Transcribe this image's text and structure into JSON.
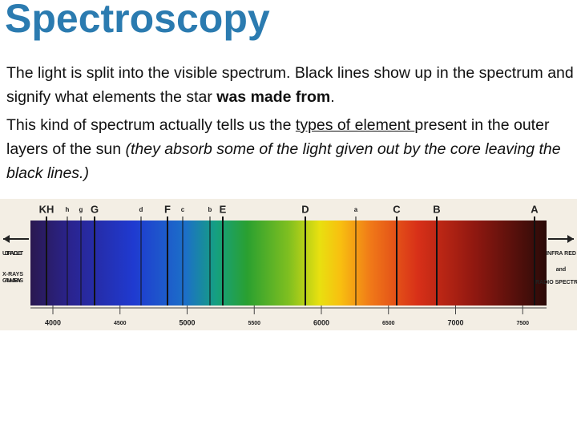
{
  "title": "Spectroscopy",
  "paragraphs": [
    {
      "runs": [
        {
          "text": "The light is split into the visible spectrum. Black lines show up in the spectrum and signify what elements the star "
        },
        {
          "text": "was made from",
          "bold": true
        },
        {
          "text": "."
        }
      ]
    },
    {
      "runs": [
        {
          "text": "This kind of spectrum actually tells us the "
        },
        {
          "text": "types of element ",
          "underline": true
        },
        {
          "text": "present in the outer layers of the sun "
        },
        {
          "text": "(they absorb some of the light given out by the core leaving the black lines.)",
          "italic": true
        }
      ]
    }
  ],
  "spectrum": {
    "line_labels": [
      "KH",
      "h",
      "g",
      "G",
      "d",
      "F",
      "c",
      "b",
      "E",
      "D",
      "a",
      "C",
      "B",
      "A"
    ],
    "left_labels": [
      "ULTRA VIOLET",
      "X-RAYS",
      "GAMMA RAYS"
    ],
    "right_labels": [
      "INFRA RED",
      "and",
      "RADIO SPECTRUM"
    ],
    "wavelengths": [
      4000,
      4500,
      5000,
      5500,
      6000,
      6500,
      7000,
      7500
    ]
  }
}
